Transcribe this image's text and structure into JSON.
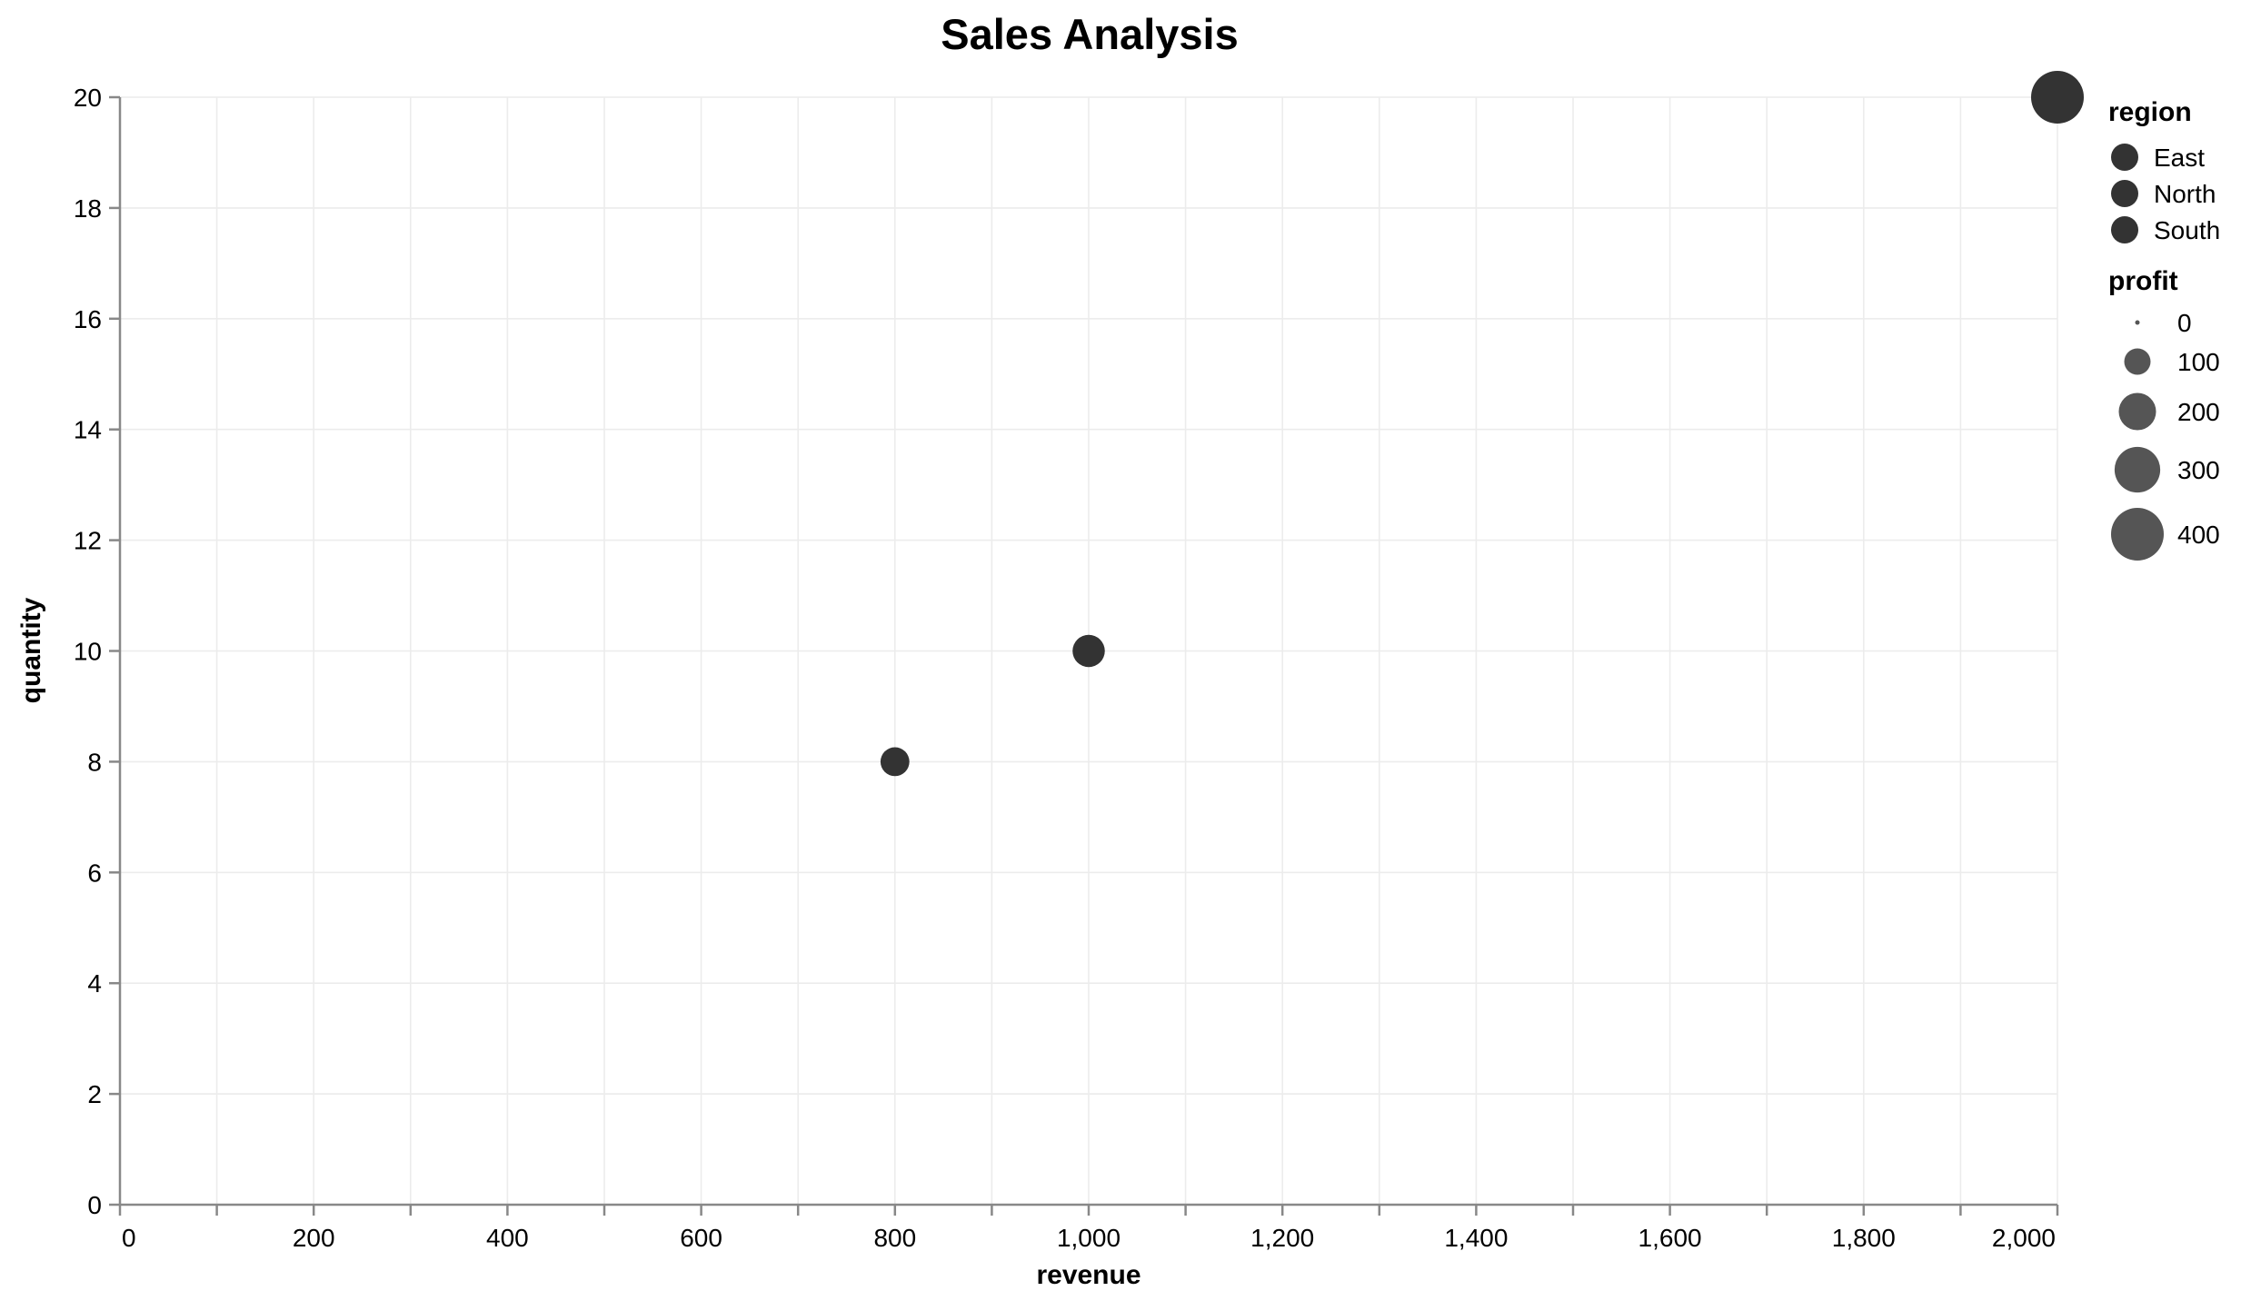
{
  "chart_data": {
    "type": "scatter",
    "title": "Sales Analysis",
    "xlabel": "revenue",
    "ylabel": "quantity",
    "xlim": [
      0,
      2000
    ],
    "ylim": [
      0,
      20
    ],
    "x_ticks": [
      0,
      200,
      400,
      600,
      800,
      1000,
      1200,
      1400,
      1600,
      1800,
      2000
    ],
    "x_tick_labels": [
      "0",
      "200",
      "400",
      "600",
      "800",
      "1,000",
      "1,200",
      "1,400",
      "1,600",
      "1,800",
      "2,000"
    ],
    "y_ticks": [
      0,
      2,
      4,
      6,
      8,
      10,
      12,
      14,
      16,
      18,
      20
    ],
    "y_tick_labels": [
      "0",
      "2",
      "4",
      "6",
      "8",
      "10",
      "12",
      "14",
      "16",
      "18",
      "20"
    ],
    "grid": true,
    "legend_placement": "right",
    "point_color": "#333333",
    "points": [
      {
        "revenue": 800,
        "quantity": 8,
        "profit": 120
      },
      {
        "revenue": 1000,
        "quantity": 10,
        "profit": 150
      },
      {
        "revenue": 2000,
        "quantity": 20,
        "profit": 400
      }
    ],
    "legends": {
      "color": {
        "title": "region",
        "entries": [
          "East",
          "North",
          "South"
        ],
        "swatch_color": "#333333"
      },
      "size": {
        "title": "profit",
        "values": [
          0,
          100,
          200,
          300,
          400
        ],
        "labels": [
          "0",
          "100",
          "200",
          "300",
          "400"
        ],
        "swatch_color": "#555555"
      }
    }
  }
}
